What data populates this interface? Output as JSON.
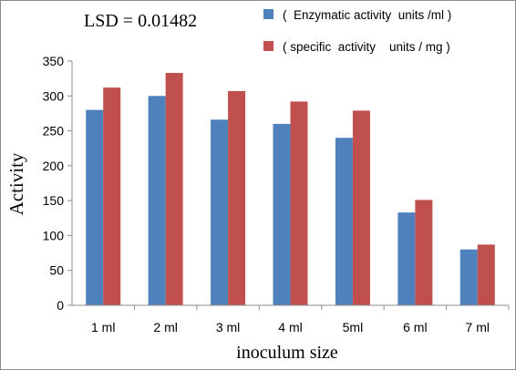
{
  "annotation": "LSD = 0.01482",
  "legend": {
    "placement": "top-right",
    "items": [
      {
        "label": "(  Enzymatic activity  units /ml )",
        "color": "#4F81BD"
      },
      {
        "label": "( specific  activity    units / mg )",
        "color": "#C0504D"
      }
    ]
  },
  "chart_data": {
    "type": "bar",
    "categories": [
      "1 ml",
      "2 ml",
      "3 ml",
      "4 ml",
      "5ml",
      "6 ml",
      "7 ml"
    ],
    "series": [
      {
        "name": "(  Enzymatic activity  units /ml )",
        "color": "#4F81BD",
        "values": [
          280,
          300,
          266,
          260,
          240,
          133,
          80
        ]
      },
      {
        "name": "( specific  activity    units / mg )",
        "color": "#C0504D",
        "values": [
          312,
          333,
          307,
          292,
          279,
          151,
          87
        ]
      }
    ],
    "xlabel": "inoculum size",
    "ylabel": "Activity",
    "ylim": [
      0,
      350
    ],
    "yticks": [
      0,
      50,
      100,
      150,
      200,
      250,
      300,
      350
    ],
    "grid": false
  }
}
